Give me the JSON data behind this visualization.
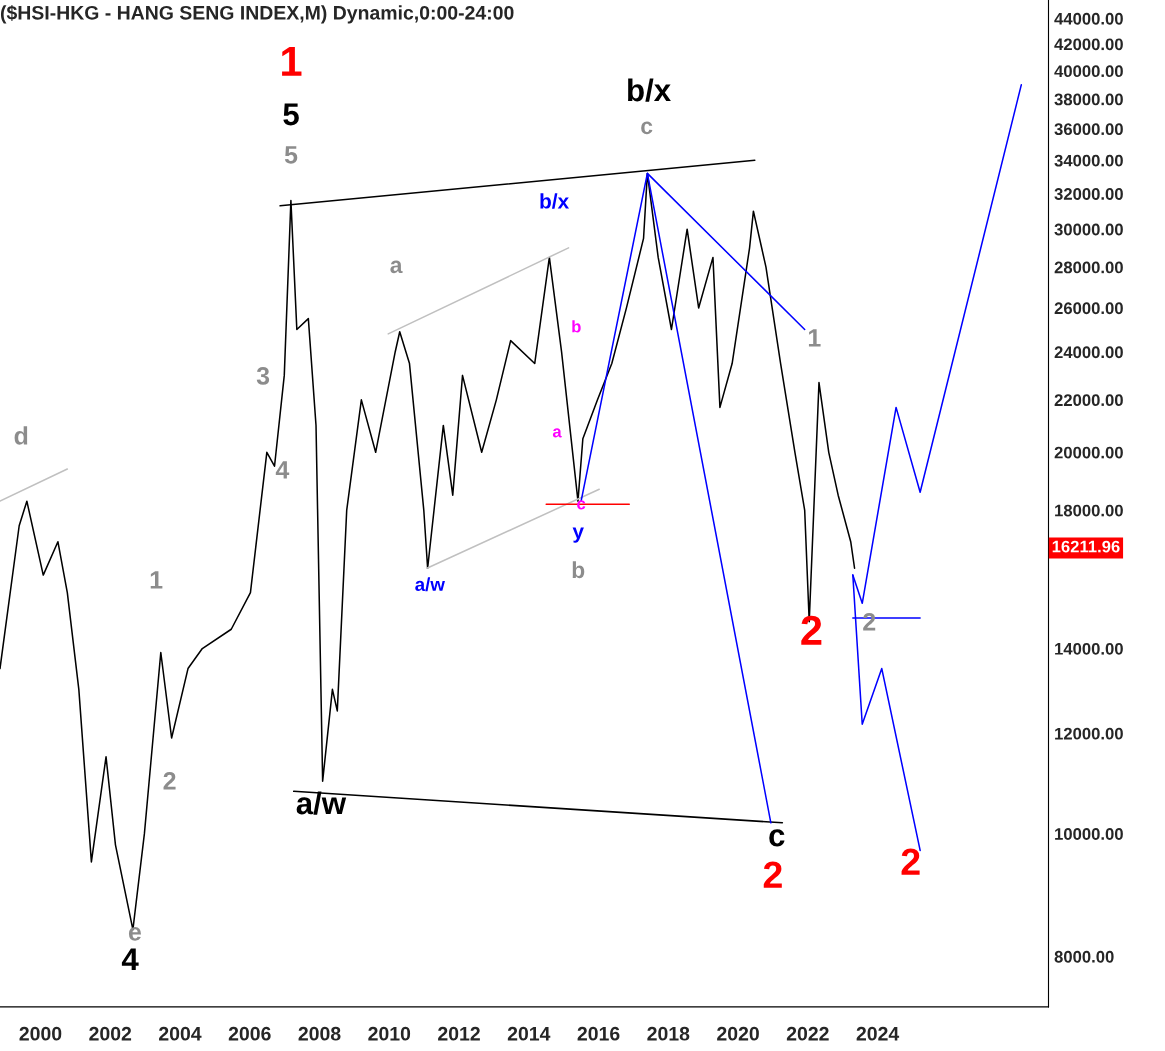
{
  "chart_data": {
    "type": "line",
    "title": "($HSI-HKG - HANG SENG INDEX,M) Dynamic,0:00-24:00",
    "log": "y",
    "grid": false,
    "xlim": [
      1998.84,
      2028.9
    ],
    "ylim": [
      7300,
      45500
    ],
    "xticks": [
      2000,
      2002,
      2004,
      2006,
      2008,
      2010,
      2012,
      2014,
      2016,
      2018,
      2020,
      2022,
      2024
    ],
    "yticks": [
      {
        "value": 8000,
        "label": "8000.00"
      },
      {
        "value": 10000,
        "label": "10000.00"
      },
      {
        "value": 12000,
        "label": "12000.00"
      },
      {
        "value": 14000,
        "label": "14000.00"
      },
      {
        "value": 18000,
        "label": "18000.00"
      },
      {
        "value": 20000,
        "label": "20000.00"
      },
      {
        "value": 22000,
        "label": "22000.00"
      },
      {
        "value": 24000,
        "label": "24000.00"
      },
      {
        "value": 26000,
        "label": "26000.00"
      },
      {
        "value": 28000,
        "label": "28000.00"
      },
      {
        "value": 30000,
        "label": "30000.00"
      },
      {
        "value": 32000,
        "label": "32000.00"
      },
      {
        "value": 34000,
        "label": "34000.00"
      },
      {
        "value": 36000,
        "label": "36000.00"
      },
      {
        "value": 38000,
        "label": "38000.00"
      },
      {
        "value": 40000,
        "label": "40000.00"
      },
      {
        "value": 42000,
        "label": "42000.00"
      },
      {
        "value": 44000,
        "label": "44000.00"
      }
    ],
    "series": [
      {
        "color": "#000000",
        "x": [
          1998.84,
          1999.39,
          1999.61,
          2000.08,
          2000.5,
          2000.77,
          2001.1,
          2001.46,
          2001.88,
          2002.15,
          2002.65,
          2002.98,
          2003.45,
          2003.76,
          2004.23,
          2004.64,
          2005.47,
          2006.02,
          2006.49,
          2006.71,
          2006.99,
          2007.18,
          2007.35,
          2007.68,
          2007.9,
          2008.09,
          2008.37,
          2008.51,
          2008.78,
          2009.2,
          2009.61,
          2010.17,
          2010.3,
          2010.58,
          2010.99,
          2011.1,
          2011.55,
          2011.82,
          2012.1,
          2012.65,
          2013.07,
          2013.48,
          2014.17,
          2014.59,
          2014.94,
          2015.41,
          2015.55,
          2015.97,
          2016.38,
          2016.8,
          2017.29,
          2017.4,
          2017.71,
          2018.09,
          2018.54,
          2018.87,
          2019.28,
          2019.48,
          2019.83,
          2020.33,
          2020.44,
          2020.8,
          2021.22,
          2021.63,
          2021.91,
          2022.04,
          2022.32,
          2022.6,
          2022.87,
          2023.23,
          2023.34
        ],
        "values": [
          13500,
          17500,
          18300,
          16000,
          17000,
          15500,
          13000,
          9500,
          11500,
          9800,
          8400,
          10000,
          13900,
          11900,
          13500,
          14000,
          14500,
          15500,
          20000,
          19500,
          23000,
          31600,
          25000,
          25500,
          21000,
          11000,
          13000,
          12500,
          18000,
          22000,
          20000,
          24000,
          24900,
          23500,
          18000,
          16200,
          21000,
          18500,
          23000,
          20000,
          22000,
          24500,
          23500,
          28500,
          24000,
          18300,
          20500,
          22000,
          23500,
          26000,
          29500,
          33200,
          28500,
          25000,
          30000,
          26000,
          28500,
          21700,
          23500,
          29000,
          31000,
          28000,
          23500,
          20000,
          18000,
          14700,
          22700,
          20000,
          18500,
          17000,
          16200
        ]
      },
      {
        "color": "#000000",
        "x": [
          2006.87,
          2020.48
        ],
        "values": [
          31300,
          34000
        ]
      },
      {
        "color": "#000000",
        "x": [
          2007.26,
          2021.27
        ],
        "values": [
          10800,
          10200
        ]
      },
      {
        "color": "#c0c0c0",
        "x": [
          1998.84,
          2000.77
        ],
        "values": [
          18300,
          19400
        ]
      },
      {
        "color": "#c0c0c0",
        "x": [
          2009.97,
          2015.14
        ],
        "values": [
          24800,
          29000
        ]
      },
      {
        "color": "#c0c0c0",
        "x": [
          2011.08,
          2016.02
        ],
        "values": [
          16200,
          18700
        ]
      },
      {
        "color": "#ff0000",
        "x": [
          2014.5,
          2016.88
        ],
        "values": [
          18200,
          18200
        ]
      },
      {
        "color": "#0000ff",
        "x": [
          2015.5,
          2017.4,
          2020.94
        ],
        "values": [
          18300,
          33200,
          10200
        ]
      },
      {
        "color": "#0000ff",
        "x": [
          2017.4,
          2021.91
        ],
        "values": [
          33200,
          25000
        ]
      },
      {
        "color": "#0000ff",
        "x": [
          2023.29,
          2023.56,
          2024.53,
          2025.22,
          2028.12
        ],
        "values": [
          16000,
          15200,
          21700,
          18600,
          39000
        ]
      },
      {
        "color": "#0000ff",
        "x": [
          2023.29,
          2025.22
        ],
        "values": [
          14800,
          14800
        ]
      },
      {
        "color": "#0000ff",
        "x": [
          2023.29,
          2023.56,
          2024.12,
          2025.22
        ],
        "values": [
          16000,
          12200,
          13500,
          9700
        ]
      }
    ],
    "annotations": [
      "1",
      "5",
      "5",
      "3",
      "4",
      "d",
      "1",
      "2",
      "e",
      "4",
      "a/w",
      "a",
      "a/w",
      "b/x",
      "b",
      "a",
      "c",
      "y",
      "b",
      "b/x",
      "c",
      "1",
      "2",
      "2",
      "c",
      "2",
      "2",
      "16211.96"
    ]
  }
}
